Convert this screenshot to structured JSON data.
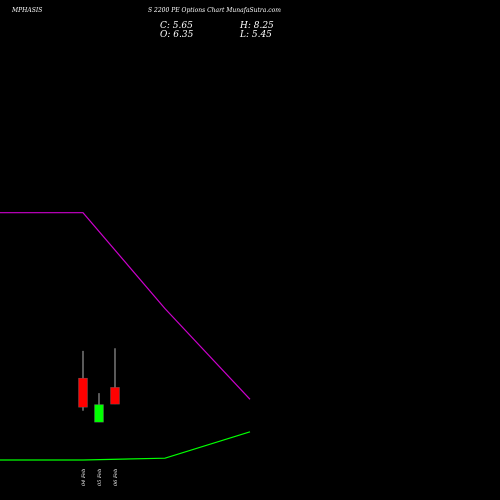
{
  "header": {
    "symbol": "MPHASIS",
    "title": "S 2200 PE Options Chart MunafaSutra.com",
    "close": "C: 5.65",
    "high": "H: 8.25",
    "open": "O: 6.35",
    "low": "L: 5.45"
  },
  "chart_data": {
    "type": "candlestick",
    "title": "S 2200 PE Options Chart MunafaSutra.com",
    "categories": [
      "04 Feb",
      "05 Feb",
      "06 Feb"
    ],
    "candles": [
      {
        "date": "04 Feb",
        "open": 9.3,
        "high": 12.4,
        "low": 5.6,
        "close": 6.0,
        "color": "#ff0000"
      },
      {
        "date": "05 Feb",
        "open": 6.3,
        "high": 7.6,
        "low": 4.3,
        "close": 4.3,
        "color": "#00ff00"
      },
      {
        "date": "06 Feb",
        "open": 8.25,
        "high": 12.7,
        "low": 6.35,
        "close": 6.35,
        "color": "#ff0000"
      }
    ],
    "lines": [
      {
        "color": "#00ff00",
        "points": [
          [
            0,
            0
          ],
          [
            1,
            0.2
          ],
          [
            2,
            3.2
          ]
        ]
      },
      {
        "color": "#cc00cc",
        "points": [
          [
            0,
            28.1
          ],
          [
            1,
            17.2
          ],
          [
            2,
            6.9
          ]
        ]
      }
    ],
    "ylim": [
      0,
      50
    ],
    "grid": false
  },
  "colors": {
    "background": "#000000",
    "text": "#ffffff",
    "bull": "#00ff00",
    "bear": "#ff0000"
  }
}
